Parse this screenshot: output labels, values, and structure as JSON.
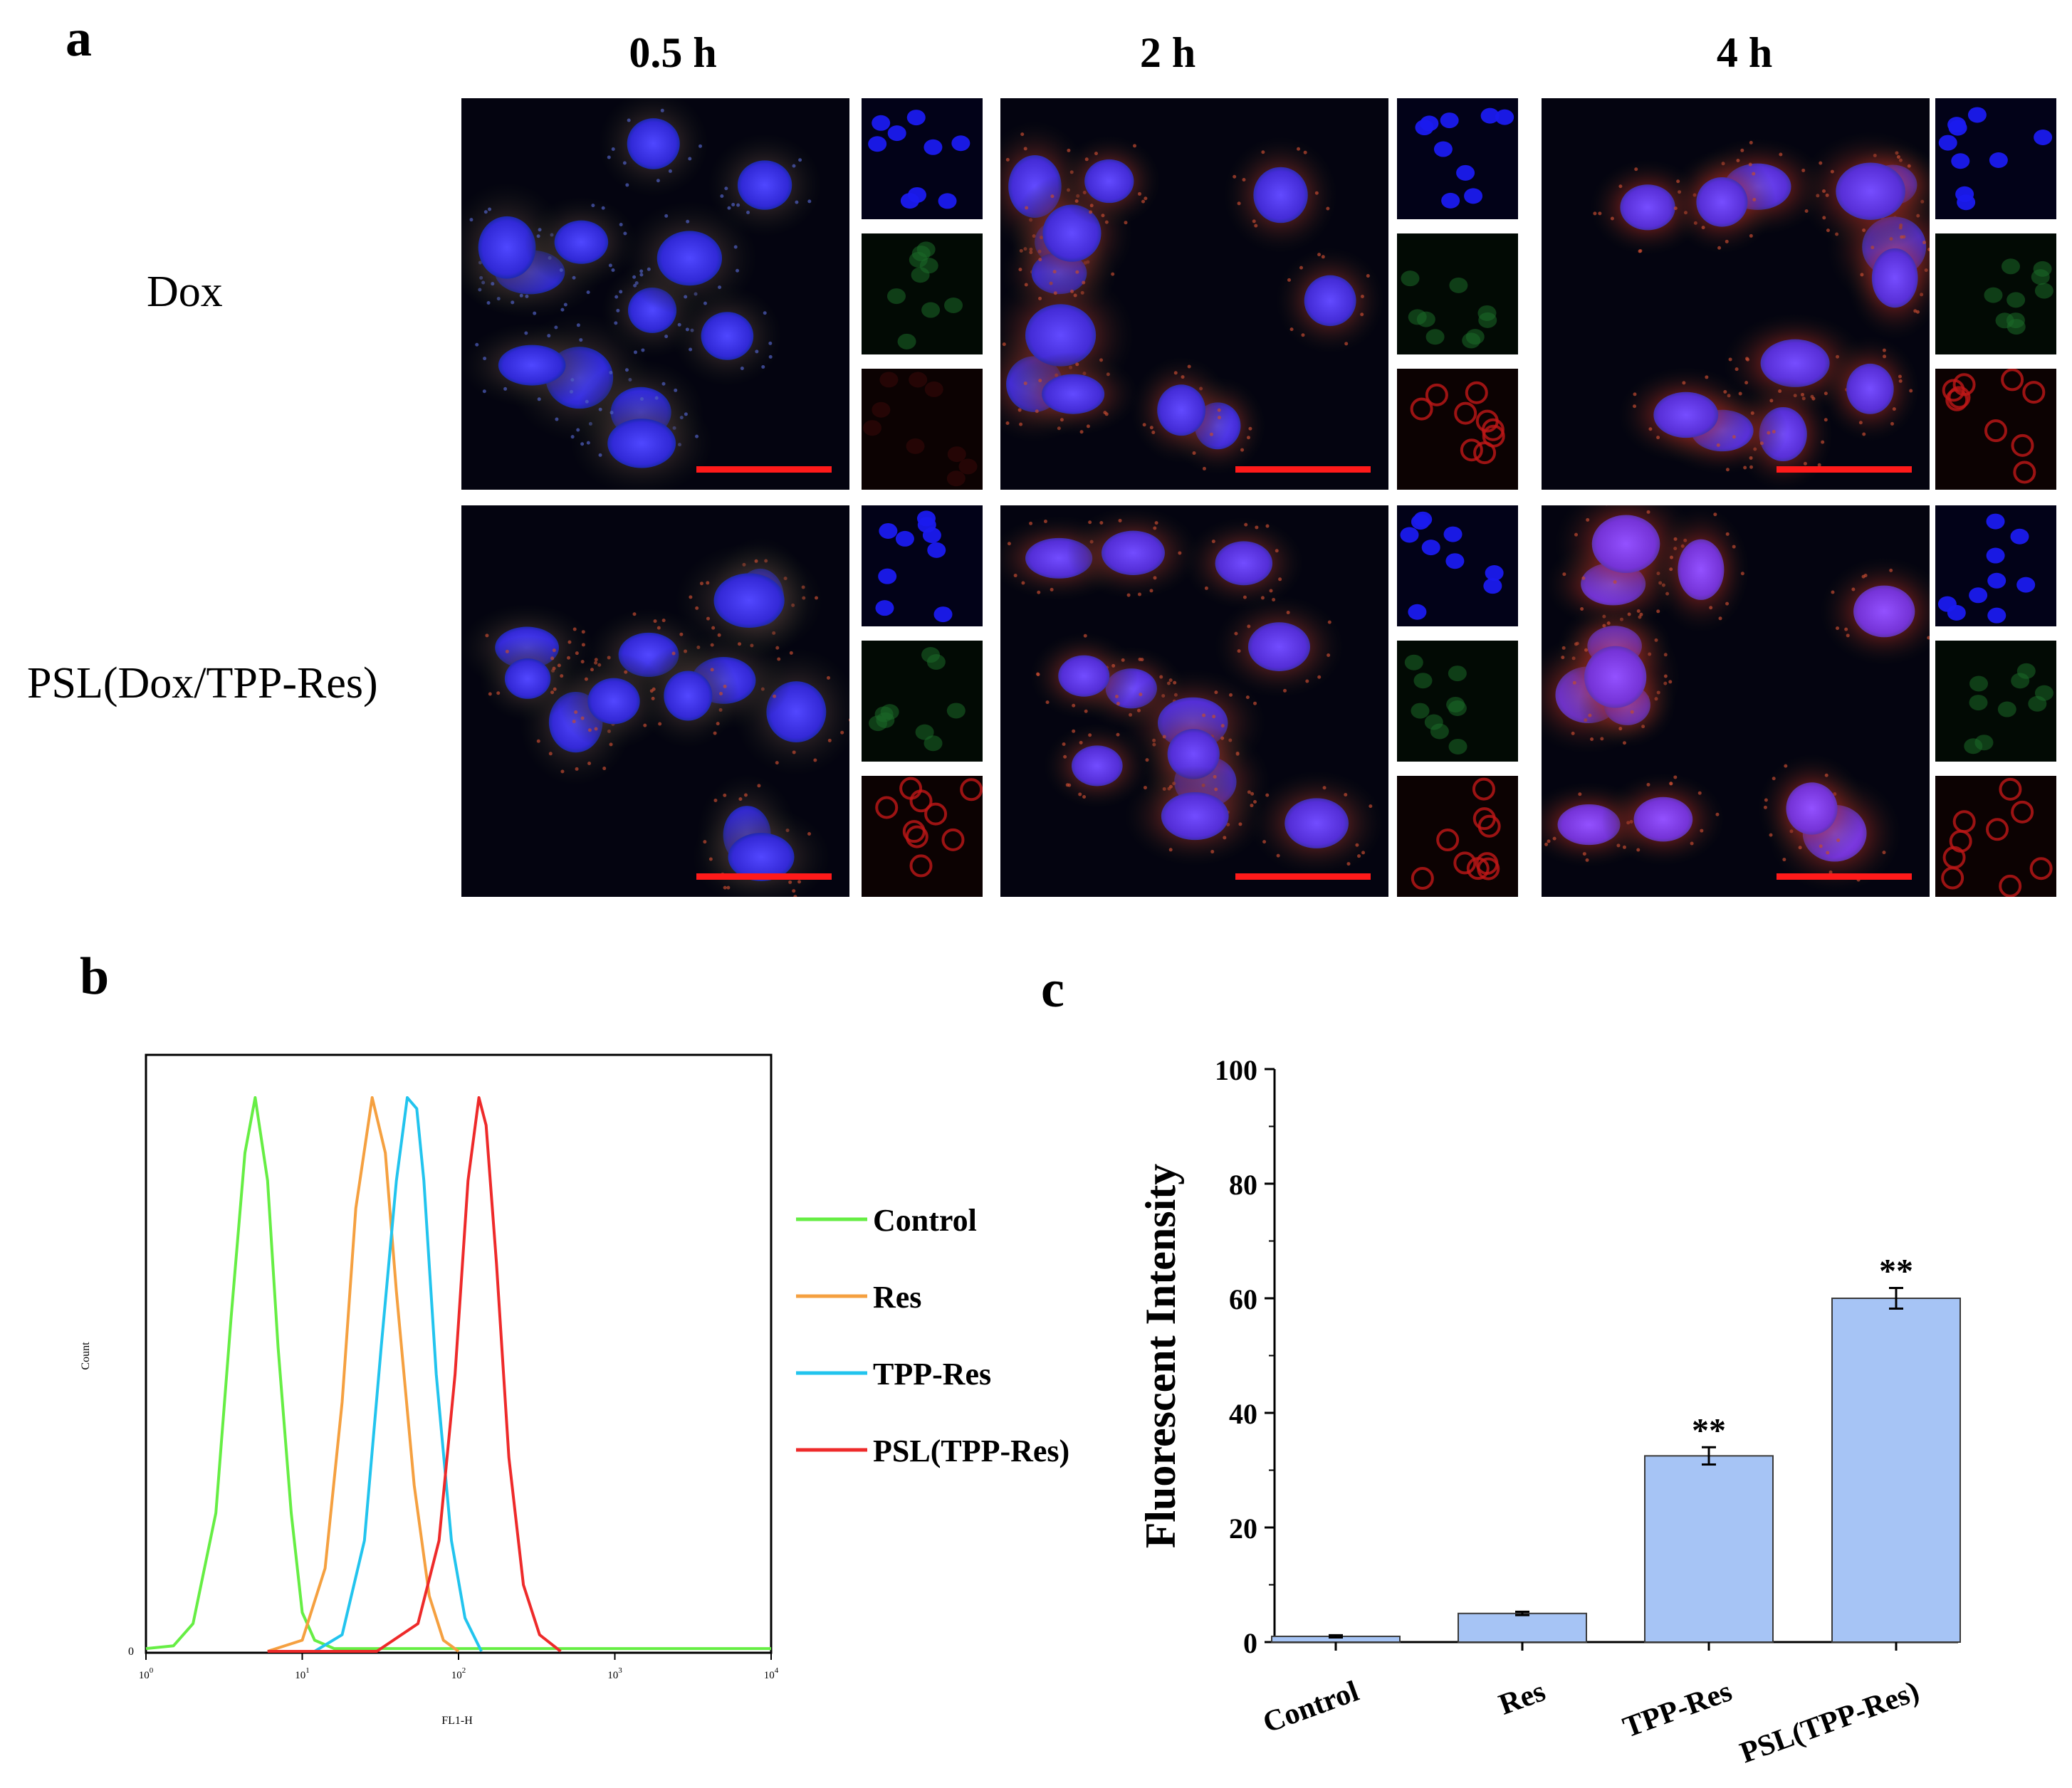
{
  "panel_a": {
    "letter": "a",
    "time_labels": [
      "0.5 h",
      "2 h",
      "4 h"
    ],
    "row_labels": [
      "Dox",
      "PSL(Dox/TPP-Res)"
    ],
    "colors": {
      "nucleus": "#3a3ae0",
      "green_channel": "#2f8f3a",
      "red_channel": "#d02020",
      "scale_bar": "#ff1a1a"
    }
  },
  "panel_b": {
    "letter": "b",
    "ylabel": "Count",
    "xlabel": "FL1-H",
    "y_tick_zero": "0",
    "x_ticks": [
      {
        "base": "10",
        "exp": "0"
      },
      {
        "base": "10",
        "exp": "1"
      },
      {
        "base": "10",
        "exp": "2"
      },
      {
        "base": "10",
        "exp": "3"
      },
      {
        "base": "10",
        "exp": "4"
      }
    ],
    "legend": [
      {
        "name": "Control",
        "color": "#66ee44"
      },
      {
        "name": "Res",
        "color": "#f5a040"
      },
      {
        "name": "TPP-Res",
        "color": "#22c4ee"
      },
      {
        "name": "PSL(TPP-Res)",
        "color": "#ee2a2a"
      }
    ]
  },
  "panel_c": {
    "letter": "c",
    "ylabel": "Fluorescent Intensity",
    "y_ticks": [
      "0",
      "20",
      "40",
      "60",
      "80",
      "100"
    ],
    "categories": [
      "Control",
      "Res",
      "TPP-Res",
      "PSL(TPP-Res)"
    ],
    "significance": [
      "",
      "",
      "**",
      "**"
    ]
  },
  "chart_data": [
    {
      "type": "line",
      "xlabel": "FL1-H",
      "ylabel": "Count",
      "x_scale": "log",
      "xlim": [
        1,
        10000
      ],
      "grid": false,
      "legend_position": "right",
      "series": [
        {
          "name": "Control",
          "color": "#66ee44",
          "peak_x": 5,
          "points": [
            [
              1,
              0.005
            ],
            [
              1.5,
              0.01
            ],
            [
              2,
              0.05
            ],
            [
              2.8,
              0.25
            ],
            [
              3.5,
              0.6
            ],
            [
              4.3,
              0.9
            ],
            [
              5,
              1.0
            ],
            [
              6,
              0.85
            ],
            [
              7,
              0.55
            ],
            [
              8.5,
              0.25
            ],
            [
              10,
              0.07
            ],
            [
              12,
              0.02
            ],
            [
              16,
              0.005
            ],
            [
              10000,
              0.005
            ]
          ]
        },
        {
          "name": "Res",
          "color": "#f5a040",
          "peak_x": 28,
          "points": [
            [
              6,
              0.0
            ],
            [
              10,
              0.02
            ],
            [
              14,
              0.15
            ],
            [
              18,
              0.45
            ],
            [
              22,
              0.8
            ],
            [
              28,
              1.0
            ],
            [
              34,
              0.9
            ],
            [
              40,
              0.65
            ],
            [
              52,
              0.3
            ],
            [
              65,
              0.1
            ],
            [
              80,
              0.02
            ],
            [
              100,
              0.0
            ]
          ]
        },
        {
          "name": "TPP-Res",
          "color": "#22c4ee",
          "peak_x": 50,
          "points": [
            [
              12,
              0.0
            ],
            [
              18,
              0.03
            ],
            [
              25,
              0.2
            ],
            [
              32,
              0.55
            ],
            [
              40,
              0.85
            ],
            [
              47,
              1.0
            ],
            [
              54,
              0.98
            ],
            [
              60,
              0.85
            ],
            [
              72,
              0.5
            ],
            [
              90,
              0.2
            ],
            [
              110,
              0.06
            ],
            [
              140,
              0.0
            ]
          ]
        },
        {
          "name": "PSL(TPP-Res)",
          "color": "#ee2a2a",
          "peak_x": 135,
          "points": [
            [
              6,
              0.0
            ],
            [
              30,
              0.0
            ],
            [
              55,
              0.05
            ],
            [
              75,
              0.2
            ],
            [
              95,
              0.5
            ],
            [
              115,
              0.85
            ],
            [
              135,
              1.0
            ],
            [
              150,
              0.95
            ],
            [
              175,
              0.7
            ],
            [
              210,
              0.35
            ],
            [
              260,
              0.12
            ],
            [
              330,
              0.03
            ],
            [
              450,
              0.0
            ]
          ]
        }
      ]
    },
    {
      "type": "bar",
      "categories": [
        "Control",
        "Res",
        "TPP-Res",
        "PSL(TPP-Res)"
      ],
      "values": [
        1,
        5,
        32.5,
        60
      ],
      "errors": [
        0.2,
        0.3,
        1.5,
        1.8
      ],
      "ylabel": "Fluorescent Intensity",
      "ylim": [
        0,
        100
      ],
      "color": "#a6c4f5",
      "grid": false
    }
  ]
}
